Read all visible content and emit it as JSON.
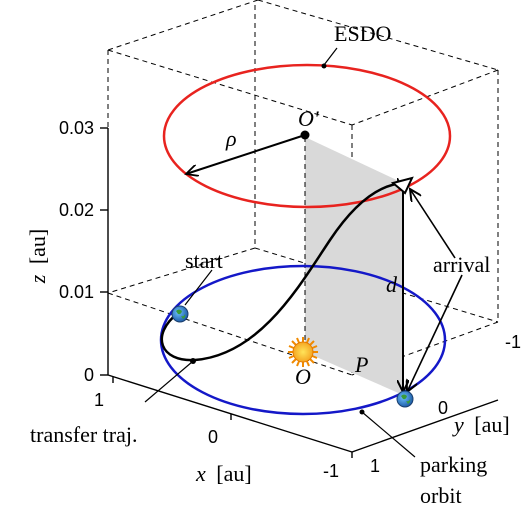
{
  "labels": {
    "esdo": "ESDO",
    "o_prime": "O'",
    "rho": "ρ",
    "start": "start",
    "arrival": "arrival",
    "d": "d",
    "o": "O",
    "p": "P",
    "transfer": "transfer traj.",
    "parking_line1": "parking",
    "parking_line2": "orbit"
  },
  "axes": {
    "z_label_var": "z",
    "z_label_unit": "[au]",
    "x_label_var": "x",
    "x_label_unit": "[au]",
    "y_label_var": "y",
    "y_label_unit": "[au]",
    "z_ticks": [
      "0",
      "0.01",
      "0.02",
      "0.03"
    ],
    "x_ticks": [
      "1",
      "0",
      "-1"
    ],
    "y_ticks": [
      "-1",
      "0",
      "1"
    ]
  },
  "colors": {
    "esdo_orbit": "#e8231f",
    "parking_orbit": "#1418c8",
    "sun": "#f5a623",
    "plane": "#d9d9d9",
    "earth": "#2f7fd0"
  },
  "icons": {
    "sun": "sun-icon",
    "earth": "earth-icon"
  }
}
